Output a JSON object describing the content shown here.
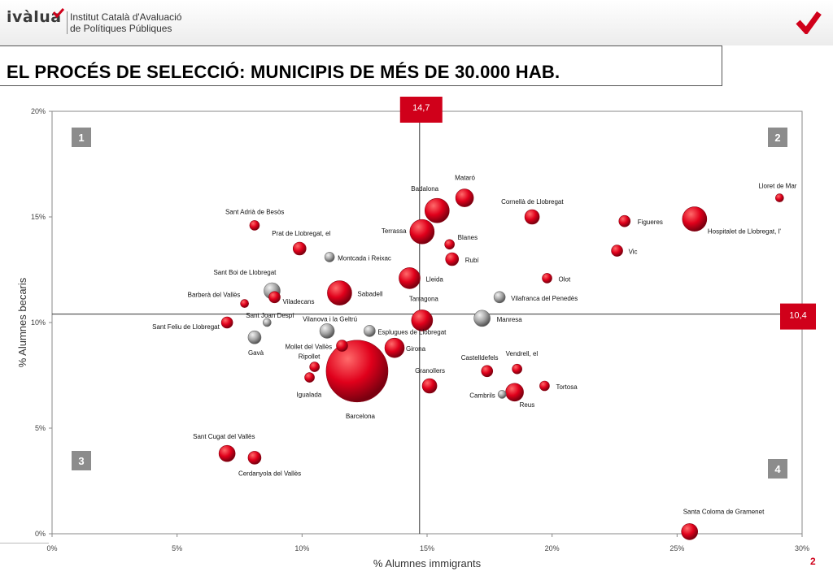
{
  "header": {
    "brand": "ivàlua",
    "org_line1": "Institut Català d'Avaluació",
    "org_line2": "de Polítiques Públiques",
    "title": "EL PROCÉS DE SELECCIÓ: MUNICIPIS DE MÉS DE 30.000 HAB.",
    "page_number": "2"
  },
  "colors": {
    "red": "#e0001b",
    "grey": "#a6a6a6",
    "brand_red": "#d0001a"
  },
  "chart_data": {
    "type": "scatter",
    "xlabel": "% Alumnes immigrants",
    "ylabel": "% Alumnes becaris",
    "xlim": [
      0,
      30
    ],
    "ylim": [
      0,
      20
    ],
    "x_ticks": [
      0,
      5,
      10,
      15,
      20,
      25,
      30
    ],
    "x_tick_labels": [
      "0%",
      "5%",
      "10%",
      "15%",
      "20%",
      "25%",
      "30%"
    ],
    "y_ticks": [
      0,
      5,
      10,
      15,
      20
    ],
    "y_tick_labels": [
      "0%",
      "5%",
      "10%",
      "15%",
      "20%"
    ],
    "v_ref": {
      "x": 14.7,
      "label": "14,7"
    },
    "h_ref": {
      "y": 10.4,
      "label": "10,4"
    },
    "quadrants": [
      "1",
      "2",
      "3",
      "4"
    ],
    "points": [
      {
        "label": "Lloret de Mar",
        "x": 29.1,
        "y": 15.9,
        "r": 5,
        "color": "red"
      },
      {
        "label": "Mataró",
        "x": 16.5,
        "y": 15.9,
        "r": 11,
        "color": "red"
      },
      {
        "label": "Badalona",
        "x": 15.4,
        "y": 15.3,
        "r": 15,
        "color": "red"
      },
      {
        "label": "Cornellà de Llobregat",
        "x": 19.2,
        "y": 15.0,
        "r": 9,
        "color": "red"
      },
      {
        "label": "Sant Adrià de Besòs",
        "x": 8.1,
        "y": 14.6,
        "r": 6,
        "color": "red"
      },
      {
        "label": "Figueres",
        "x": 22.9,
        "y": 14.8,
        "r": 7,
        "color": "red"
      },
      {
        "label": "Hospitalet de Llobregat, l'",
        "x": 25.7,
        "y": 14.9,
        "r": 15,
        "color": "red"
      },
      {
        "label": "Terrassa",
        "x": 14.8,
        "y": 14.3,
        "r": 15,
        "color": "red"
      },
      {
        "label": "Blanes",
        "x": 15.9,
        "y": 13.7,
        "r": 6,
        "color": "red"
      },
      {
        "label": "Prat de Llobregat, el",
        "x": 9.9,
        "y": 13.5,
        "r": 8,
        "color": "red"
      },
      {
        "label": "Vic",
        "x": 22.6,
        "y": 13.4,
        "r": 7,
        "color": "red"
      },
      {
        "label": "Rubí",
        "x": 16.0,
        "y": 13.0,
        "r": 8,
        "color": "red"
      },
      {
        "label": "Montcada i Reixac",
        "x": 11.1,
        "y": 13.1,
        "r": 6,
        "color": "grey"
      },
      {
        "label": "Lleida",
        "x": 14.3,
        "y": 12.1,
        "r": 13,
        "color": "red"
      },
      {
        "label": "Olot",
        "x": 19.8,
        "y": 12.1,
        "r": 6,
        "color": "red"
      },
      {
        "label": "Sant Boi de Llobregat",
        "x": 8.8,
        "y": 11.5,
        "r": 10,
        "color": "grey"
      },
      {
        "label": "Sabadell",
        "x": 11.5,
        "y": 11.4,
        "r": 15,
        "color": "red"
      },
      {
        "label": "Viladecans",
        "x": 8.9,
        "y": 11.2,
        "r": 7,
        "color": "red"
      },
      {
        "label": "Vilafranca del Penedès",
        "x": 17.9,
        "y": 11.2,
        "r": 7,
        "color": "grey"
      },
      {
        "label": "Barberà del Vallès",
        "x": 7.7,
        "y": 10.9,
        "r": 5,
        "color": "red"
      },
      {
        "label": "Tarragona",
        "x": 14.8,
        "y": 10.1,
        "r": 13,
        "color": "red"
      },
      {
        "label": "Manresa",
        "x": 17.2,
        "y": 10.2,
        "r": 10,
        "color": "grey"
      },
      {
        "label": "Sant Joan Despí",
        "x": 8.6,
        "y": 10.0,
        "r": 5,
        "color": "grey"
      },
      {
        "label": "Sant Feliu de Llobregat",
        "x": 7.0,
        "y": 10.0,
        "r": 7,
        "color": "red"
      },
      {
        "label": "Vilanova i la Geltrú",
        "x": 11.0,
        "y": 9.6,
        "r": 9,
        "color": "grey"
      },
      {
        "label": "Esplugues de Llobregat",
        "x": 12.7,
        "y": 9.6,
        "r": 7,
        "color": "grey"
      },
      {
        "label": "Gavà",
        "x": 8.1,
        "y": 9.3,
        "r": 8,
        "color": "grey"
      },
      {
        "label": "Mollet del Vallès",
        "x": 11.6,
        "y": 8.9,
        "r": 7,
        "color": "red"
      },
      {
        "label": "Girona",
        "x": 13.7,
        "y": 8.8,
        "r": 12,
        "color": "red"
      },
      {
        "label": "Ripollet",
        "x": 10.5,
        "y": 7.9,
        "r": 6,
        "color": "red"
      },
      {
        "label": "Barcelona",
        "x": 12.2,
        "y": 7.7,
        "r": 38,
        "color": "red"
      },
      {
        "label": "Castelldefels",
        "x": 17.4,
        "y": 7.7,
        "r": 7,
        "color": "red"
      },
      {
        "label": "Vendrell, el",
        "x": 18.6,
        "y": 7.8,
        "r": 6,
        "color": "red"
      },
      {
        "label": "Igualada",
        "x": 10.3,
        "y": 7.4,
        "r": 6,
        "color": "red"
      },
      {
        "label": "Granollers",
        "x": 15.1,
        "y": 7.0,
        "r": 9,
        "color": "red"
      },
      {
        "label": "Tortosa",
        "x": 19.7,
        "y": 7.0,
        "r": 6,
        "color": "red"
      },
      {
        "label": "Cambrils",
        "x": 18.0,
        "y": 6.6,
        "r": 5,
        "color": "grey"
      },
      {
        "label": "Reus",
        "x": 18.5,
        "y": 6.7,
        "r": 11,
        "color": "red"
      },
      {
        "label": "Sant Cugat del Vallès",
        "x": 7.0,
        "y": 3.8,
        "r": 10,
        "color": "red"
      },
      {
        "label": "Cerdanyola del Vallès",
        "x": 8.1,
        "y": 3.6,
        "r": 8,
        "color": "red"
      },
      {
        "label": "Santa Coloma de Gramenet",
        "x": 25.5,
        "y": 0.1,
        "r": 10,
        "color": "red"
      }
    ]
  }
}
